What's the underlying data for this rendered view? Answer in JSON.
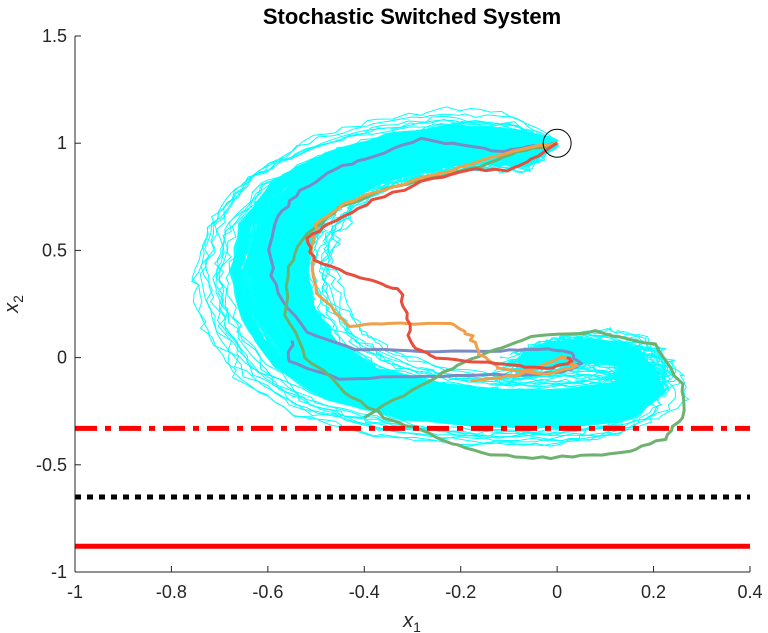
{
  "chart_data": {
    "type": "line",
    "title": "Stochastic Switched System",
    "xlabel": "x",
    "xlabel_sub": "1",
    "ylabel": "x",
    "ylabel_sub": "2",
    "xlim": [
      -1,
      0.4
    ],
    "ylim": [
      -1,
      1.5
    ],
    "xticks": [
      -1,
      -0.8,
      -0.6,
      -0.4,
      -0.2,
      0,
      0.2,
      0.4
    ],
    "xtick_labels": [
      "-1",
      "-0.8",
      "-0.6",
      "-0.4",
      "-0.2",
      "0",
      "0.2",
      "0.4"
    ],
    "yticks": [
      -1,
      -0.5,
      0,
      0.5,
      1,
      1.5
    ],
    "ytick_labels": [
      "-1",
      "-0.5",
      "0",
      "0.5",
      "1",
      "1.5"
    ],
    "grid": false,
    "legend": "none",
    "initial_point": {
      "x": 0,
      "y": 1
    },
    "reference_lines": [
      {
        "y": -0.33,
        "style": "dash-dot",
        "color": "#ff0000"
      },
      {
        "y": -0.65,
        "style": "dotted",
        "color": "#000000"
      },
      {
        "y": -0.88,
        "style": "solid",
        "color": "#ff0000"
      }
    ],
    "cloud_color": "#00ffff",
    "series": [
      {
        "color": "#7b8bc4",
        "x": [
          0,
          -0.06,
          -0.12,
          -0.2,
          -0.28,
          -0.38,
          -0.46,
          -0.53,
          -0.58,
          -0.6,
          -0.58,
          -0.52,
          -0.42,
          -0.28,
          -0.12,
          -0.02,
          0.03,
          0.05,
          0.02,
          -0.05,
          -0.15,
          -0.3,
          -0.45,
          -0.56,
          -0.55
        ],
        "y": [
          1,
          0.98,
          0.96,
          0.99,
          1.02,
          0.94,
          0.88,
          0.78,
          0.66,
          0.5,
          0.3,
          0.12,
          0.04,
          0.03,
          0.03,
          0.04,
          0.02,
          -0.03,
          -0.06,
          -0.08,
          -0.08,
          -0.09,
          -0.1,
          -0.02,
          0.08
        ]
      },
      {
        "color": "#6fb26f",
        "x": [
          0,
          -0.08,
          -0.16,
          -0.26,
          -0.36,
          -0.45,
          -0.52,
          -0.56,
          -0.56,
          -0.52,
          -0.44,
          -0.36,
          -0.28,
          -0.22,
          -0.14,
          -0.05,
          0.05,
          0.15,
          0.22,
          0.26,
          0.26,
          0.2,
          0.08,
          -0.05,
          -0.15,
          -0.22,
          -0.3,
          -0.4
        ],
        "y": [
          1,
          0.96,
          0.89,
          0.84,
          0.78,
          0.7,
          0.58,
          0.42,
          0.2,
          0.0,
          -0.16,
          -0.28,
          -0.34,
          -0.4,
          -0.45,
          -0.47,
          -0.46,
          -0.44,
          -0.38,
          -0.28,
          -0.12,
          0.06,
          0.12,
          0.1,
          0.02,
          -0.05,
          -0.15,
          -0.28
        ]
      },
      {
        "color": "#f0a04a",
        "x": [
          0,
          -0.06,
          -0.14,
          -0.24,
          -0.34,
          -0.44,
          -0.5,
          -0.51,
          -0.5,
          -0.43,
          -0.35,
          -0.22,
          -0.18,
          -0.16,
          -0.12,
          -0.02,
          0.04,
          0.01,
          -0.08,
          -0.18
        ],
        "y": [
          1,
          0.98,
          0.93,
          0.86,
          0.8,
          0.72,
          0.62,
          0.5,
          0.3,
          0.15,
          0.16,
          0.16,
          0.1,
          0.02,
          -0.05,
          -0.08,
          -0.04,
          0.0,
          -0.08,
          -0.11
        ]
      },
      {
        "color": "#e84d3d",
        "x": [
          0,
          -0.04,
          -0.1,
          -0.18,
          -0.28,
          -0.38,
          -0.46,
          -0.52,
          -0.5,
          -0.42,
          -0.37,
          -0.33,
          -0.31,
          -0.3,
          -0.25,
          -0.16,
          -0.08,
          -0.02,
          0.03,
          0.02
        ],
        "y": [
          1,
          0.94,
          0.87,
          0.88,
          0.82,
          0.73,
          0.64,
          0.56,
          0.45,
          0.38,
          0.35,
          0.32,
          0.18,
          0.05,
          0.0,
          -0.02,
          -0.04,
          -0.05,
          -0.02,
          0.0
        ]
      }
    ]
  }
}
